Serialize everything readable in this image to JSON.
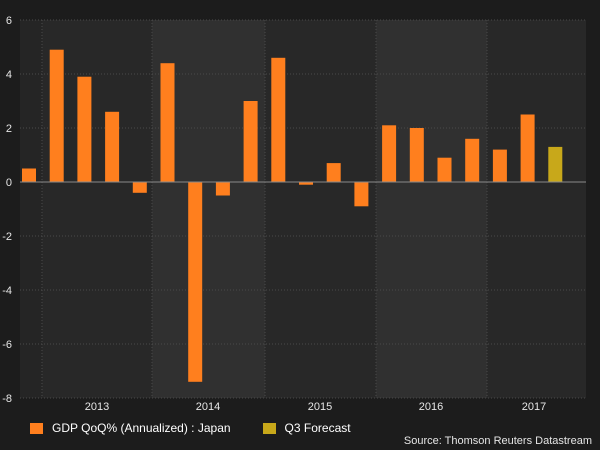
{
  "chart_data": {
    "type": "bar",
    "title": "",
    "xlabel": "",
    "ylabel": "",
    "ylim": [
      -8,
      6
    ],
    "yticks": [
      -8,
      -6,
      -4,
      -2,
      0,
      2,
      4,
      6
    ],
    "grid": true,
    "year_labels": [
      "2013",
      "2014",
      "2015",
      "2016",
      "2017"
    ],
    "series": [
      {
        "name": "GDP QoQ% (Annualized) : Japan",
        "color": "#ff7f1e",
        "values": [
          0.5,
          4.9,
          3.9,
          2.6,
          -0.4,
          4.4,
          -7.4,
          -0.5,
          3.0,
          4.6,
          -0.1,
          0.7,
          -0.9,
          2.1,
          2.0,
          0.9,
          1.6,
          1.2,
          2.5
        ]
      },
      {
        "name": "Q3 Forecast",
        "color": "#c8a81a",
        "values": [
          1.3
        ]
      }
    ]
  },
  "legend": {
    "items": [
      {
        "label": "GDP QoQ% (Annualized) : Japan",
        "color": "#ff7f1e"
      },
      {
        "label": "Q3 Forecast",
        "color": "#c8a81a"
      }
    ]
  },
  "source": "Source: Thomson Reuters Datastream"
}
